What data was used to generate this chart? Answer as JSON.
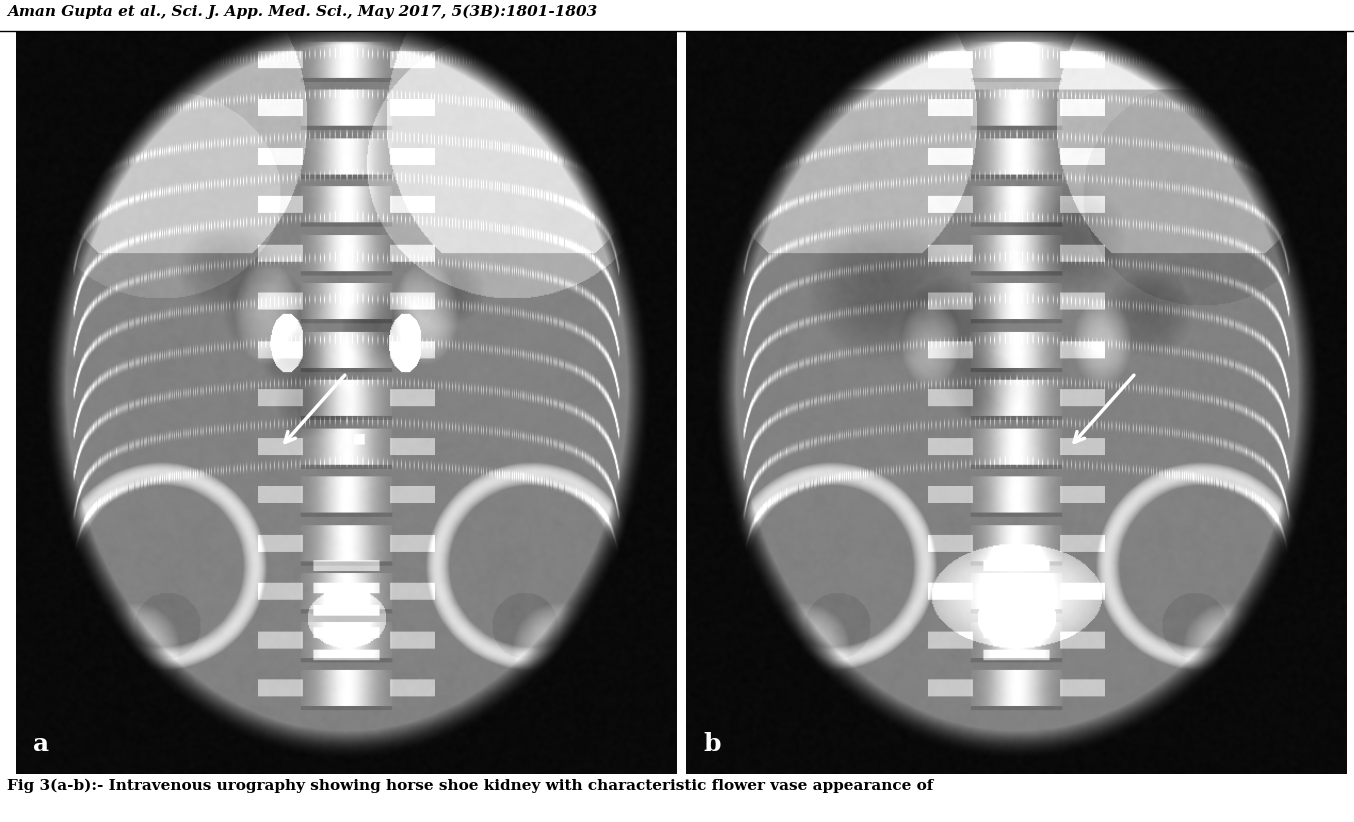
{
  "header_text": "Aman Gupta et al., Sci. J. App. Med. Sci., May 2017, 5(3B):1801-1803",
  "caption_text": "Fig 3(a-b):- Intravenous urography showing horse shoe kidney with characteristic flower vase appearance of",
  "label_a": "a",
  "label_b": "b",
  "background_color": "#ffffff",
  "header_fontsize": 11,
  "caption_fontsize": 11,
  "label_fontsize": 18,
  "fig_width": 13.54,
  "fig_height": 8.22,
  "image_border_color": "#000000"
}
